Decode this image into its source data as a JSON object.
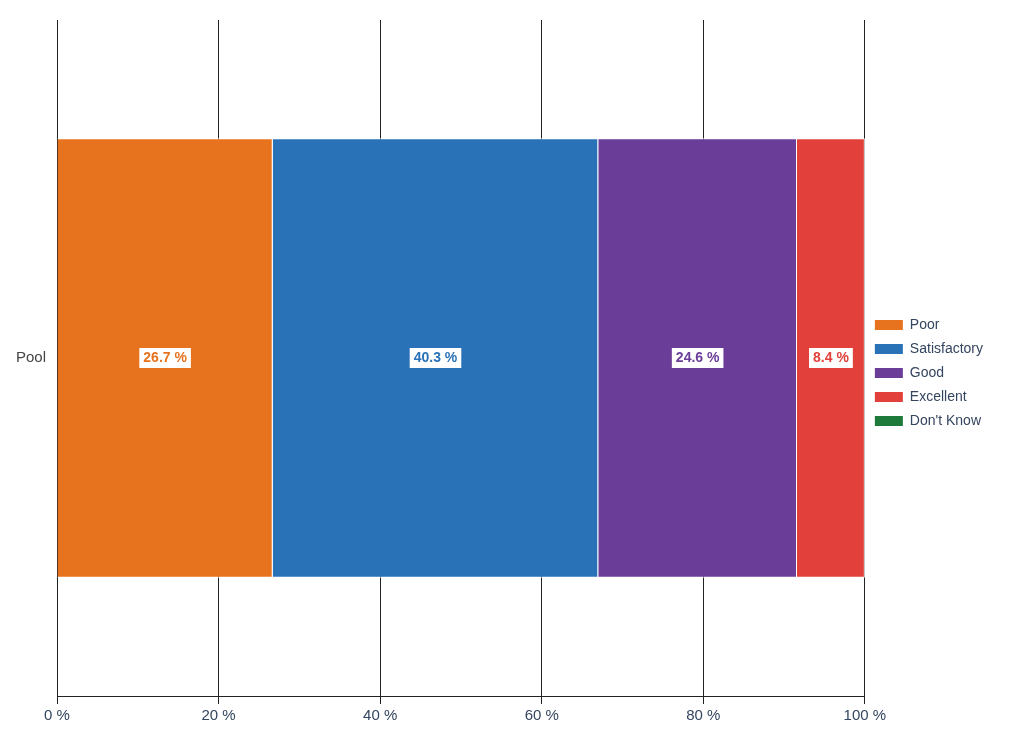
{
  "chart_data": {
    "type": "bar",
    "orientation": "horizontal",
    "stacked": true,
    "categories": [
      "Pool"
    ],
    "series": [
      {
        "name": "Poor",
        "color": "#e8731e",
        "values": [
          26.7
        ],
        "value_labels": [
          "26.7 %"
        ]
      },
      {
        "name": "Satisfactory",
        "color": "#2a72b8",
        "values": [
          40.3
        ],
        "value_labels": [
          "40.3 %"
        ]
      },
      {
        "name": "Good",
        "color": "#6a3d98",
        "values": [
          24.6
        ],
        "value_labels": [
          "24.6 %"
        ]
      },
      {
        "name": "Excellent",
        "color": "#e2403a",
        "values": [
          8.4
        ],
        "value_labels": [
          "8.4 %"
        ]
      },
      {
        "name": "Don't Know",
        "color": "#1d7a3a",
        "values": [
          0
        ],
        "value_labels": [
          null
        ]
      }
    ],
    "xlim": [
      0,
      100
    ],
    "xticks": [
      {
        "value": 0,
        "label": "0 %"
      },
      {
        "value": 20,
        "label": "20 %"
      },
      {
        "value": 40,
        "label": "40 %"
      },
      {
        "value": 60,
        "label": "60 %"
      },
      {
        "value": 80,
        "label": "80 %"
      },
      {
        "value": 100,
        "label": "100 %"
      }
    ],
    "grid": "x",
    "legend": "right"
  }
}
